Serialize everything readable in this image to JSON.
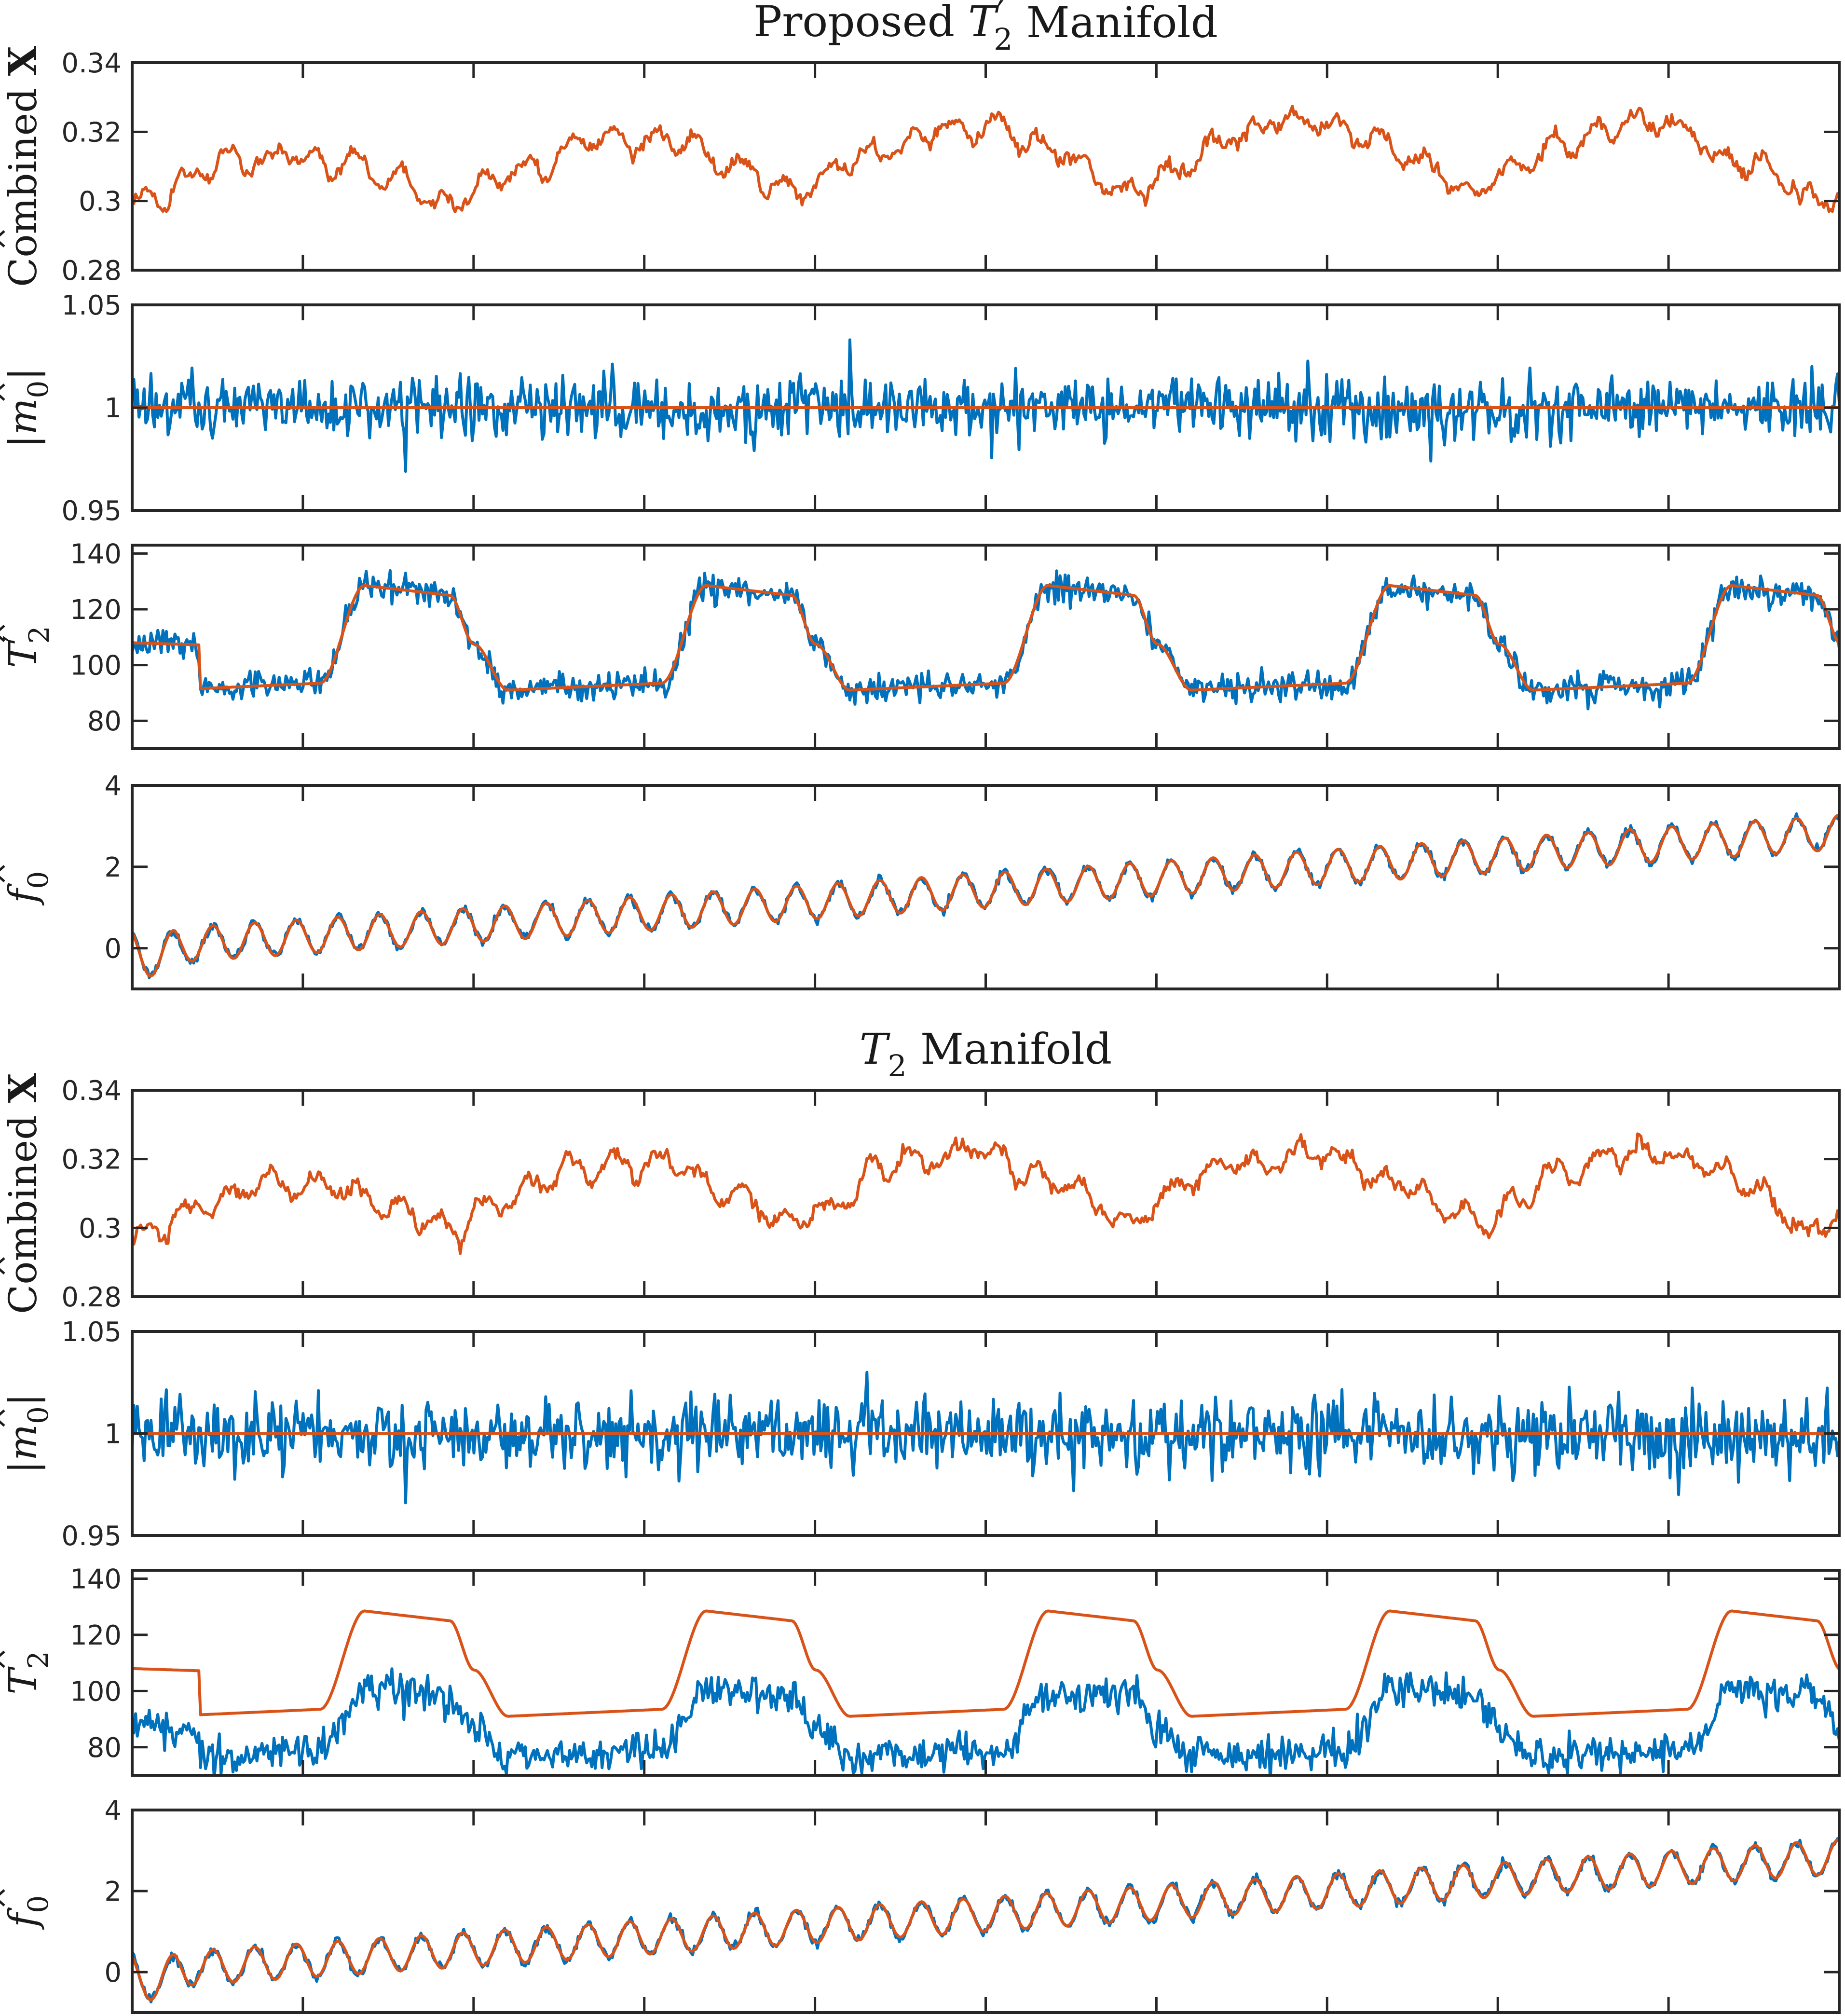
{
  "colors": {
    "observed": "#0072BD",
    "reference": "#D95319",
    "axis": "#262626"
  },
  "figures": [
    {
      "title": "Proposed T2′ Manifold",
      "title_parts": {
        "pre": "Proposed ",
        "sym": "T",
        "sub": "2",
        "prime": "′",
        "post": " Manifold"
      }
    },
    {
      "title": "T2 Manifold",
      "title_parts": {
        "pre": "",
        "sym": "T",
        "sub": "2",
        "prime": "",
        "post": " Manifold"
      }
    }
  ],
  "chart_data": [
    {
      "type": "line",
      "group": 0,
      "ylabel": "Combined X̂",
      "ylabel_parts": {
        "pre": "Combined ",
        "sym": "X",
        "hat": "^",
        "sub": "",
        "bars": false,
        "prime": ""
      },
      "ylim": [
        0.28,
        0.34
      ],
      "yticks": [
        0.28,
        0.3,
        0.32,
        0.34
      ],
      "ytick_labels": [
        "0.28",
        "0.3",
        "0.32",
        "0.34"
      ],
      "xlim": [
        0,
        1000
      ],
      "xticks_count": 11,
      "grid": false,
      "series": [
        {
          "key": "reference",
          "shape": "wander",
          "base": 0.306,
          "amps": [
            0.006,
            0.022,
            0.027,
            0.03,
            0.027,
            0.02
          ],
          "noise": 0.0018,
          "bias": 0.002
        }
      ]
    },
    {
      "type": "line",
      "group": 0,
      "ylabel": "|m̂0|",
      "ylabel_parts": {
        "pre": "",
        "sym": "m",
        "hat": "^",
        "sub": "0",
        "bars": true,
        "prime": ""
      },
      "ylim": [
        0.95,
        1.05
      ],
      "yticks": [
        0.95,
        1,
        1.05
      ],
      "ytick_labels": [
        "0.95",
        "1",
        "1.05"
      ],
      "xlim": [
        0,
        1000
      ],
      "xticks_count": 11,
      "grid": false,
      "series": [
        {
          "key": "observed",
          "shape": "noise",
          "base": 1.0,
          "noise": 0.0075,
          "spikes": [
            [
              420,
              0.033
            ],
            [
              160,
              -0.031
            ],
            [
              760,
              -0.026
            ]
          ]
        },
        {
          "key": "reference",
          "shape": "flat",
          "base": 1.0
        }
      ]
    },
    {
      "type": "line",
      "group": 0,
      "ylabel": "T̂2′",
      "ylabel_parts": {
        "pre": "",
        "sym": "T",
        "hat": "^",
        "sub": "2",
        "bars": false,
        "prime": "′"
      },
      "ylim": [
        70,
        143
      ],
      "yticks": [
        80,
        100,
        120,
        140
      ],
      "ytick_labels": [
        "80",
        "100",
        "120",
        "140"
      ],
      "xlim": [
        0,
        1000
      ],
      "xticks_count": 11,
      "grid": false,
      "series": [
        {
          "key": "observed",
          "shape": "plateau",
          "scale": 1.0,
          "offset": 0,
          "noise": 2.6
        },
        {
          "key": "reference",
          "shape": "plateau",
          "scale": 1.0,
          "offset": 0,
          "noise": 0
        }
      ]
    },
    {
      "type": "line",
      "group": 0,
      "ylabel": "f̂0",
      "ylabel_parts": {
        "pre": "",
        "sym": "f",
        "hat": "^",
        "sub": "0",
        "bars": false,
        "prime": ""
      },
      "ylim": [
        -1,
        4
      ],
      "yticks": [
        0,
        2,
        4
      ],
      "ytick_labels": [
        "0",
        "2",
        "4"
      ],
      "xlim": [
        0,
        1000
      ],
      "xticks_count": 11,
      "grid": false,
      "series": [
        {
          "key": "observed",
          "shape": "chirp",
          "cycles": 41,
          "amp": 0.42,
          "noise": 0.06
        },
        {
          "key": "reference",
          "shape": "chirp",
          "cycles": 41,
          "amp": 0.42,
          "noise": 0
        }
      ]
    },
    {
      "type": "line",
      "group": 1,
      "ylabel": "Combined X̂",
      "ylabel_parts": {
        "pre": "Combined ",
        "sym": "X",
        "hat": "^",
        "sub": "",
        "bars": false,
        "prime": ""
      },
      "ylim": [
        0.28,
        0.34
      ],
      "yticks": [
        0.28,
        0.3,
        0.32,
        0.34
      ],
      "ytick_labels": [
        "0.28",
        "0.3",
        "0.32",
        "0.34"
      ],
      "xlim": [
        0,
        1000
      ],
      "xticks_count": 11,
      "grid": false,
      "series": [
        {
          "key": "reference",
          "shape": "wander",
          "base": 0.306,
          "amps": [
            0.006,
            0.022,
            0.027,
            0.03,
            0.027,
            0.02
          ],
          "noise": 0.0018,
          "bias": 0.002
        }
      ]
    },
    {
      "type": "line",
      "group": 1,
      "ylabel": "|m̂0|",
      "ylabel_parts": {
        "pre": "",
        "sym": "m",
        "hat": "^",
        "sub": "0",
        "bars": true,
        "prime": ""
      },
      "ylim": [
        0.95,
        1.05
      ],
      "yticks": [
        0.95,
        1,
        1.05
      ],
      "ytick_labels": [
        "0.95",
        "1",
        "1.05"
      ],
      "xlim": [
        0,
        1000
      ],
      "xticks_count": 11,
      "grid": false,
      "series": [
        {
          "key": "observed",
          "shape": "noise",
          "base": 1.0,
          "noise": 0.009,
          "spikes": [
            [
              160,
              -0.034
            ],
            [
              430,
              0.03
            ],
            [
              905,
              -0.03
            ]
          ]
        },
        {
          "key": "reference",
          "shape": "flat",
          "base": 1.0
        }
      ]
    },
    {
      "type": "line",
      "group": 1,
      "ylabel": "T̂2",
      "ylabel_parts": {
        "pre": "",
        "sym": "T",
        "hat": "^",
        "sub": "2",
        "bars": false,
        "prime": ""
      },
      "ylim": [
        70,
        143
      ],
      "yticks": [
        80,
        100,
        120,
        140
      ],
      "ytick_labels": [
        "80",
        "100",
        "120",
        "140"
      ],
      "xlim": [
        0,
        1000
      ],
      "xticks_count": 11,
      "grid": false,
      "series": [
        {
          "key": "observed",
          "shape": "plateau",
          "scale": 0.62,
          "offset": 20.5,
          "noise": 3.4
        },
        {
          "key": "reference",
          "shape": "plateau",
          "scale": 1.0,
          "offset": 0,
          "noise": 0
        }
      ]
    },
    {
      "type": "line",
      "group": 1,
      "ylabel": "f̂0",
      "ylabel_parts": {
        "pre": "",
        "sym": "f",
        "hat": "^",
        "sub": "0",
        "bars": false,
        "prime": ""
      },
      "ylim": [
        -1,
        4
      ],
      "yticks": [
        0,
        2,
        4
      ],
      "ytick_labels": [
        "0",
        "2",
        "4"
      ],
      "xlim": [
        0,
        1000
      ],
      "xticks_count": 11,
      "grid": false,
      "series": [
        {
          "key": "observed",
          "shape": "chirp",
          "cycles": 41,
          "amp": 0.42,
          "noise": 0.06
        },
        {
          "key": "reference",
          "shape": "chirp",
          "cycles": 41,
          "amp": 0.42,
          "noise": 0
        }
      ]
    }
  ]
}
